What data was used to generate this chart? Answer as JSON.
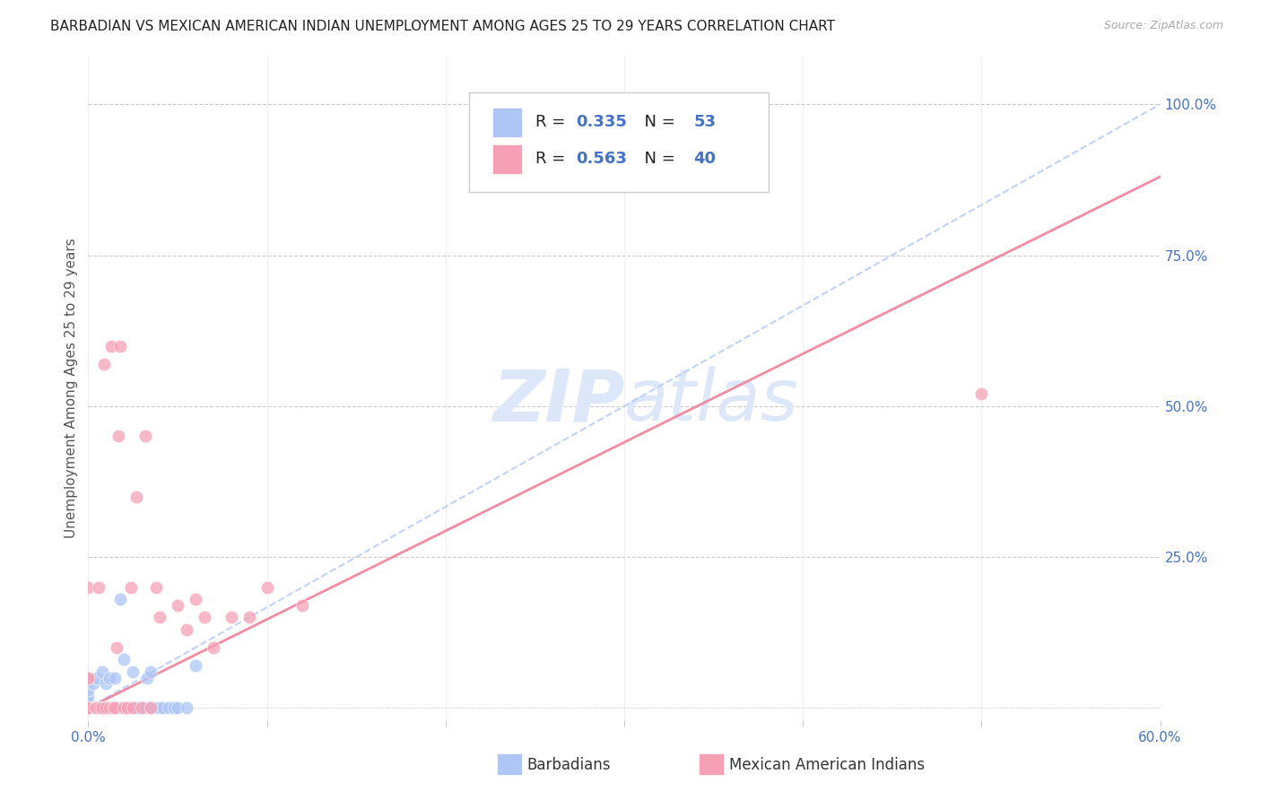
{
  "title": "BARBADIAN VS MEXICAN AMERICAN INDIAN UNEMPLOYMENT AMONG AGES 25 TO 29 YEARS CORRELATION CHART",
  "source": "Source: ZipAtlas.com",
  "ylabel": "Unemployment Among Ages 25 to 29 years",
  "xlim": [
    0.0,
    0.6
  ],
  "ylim": [
    -0.02,
    1.08
  ],
  "xticks": [
    0.0,
    0.1,
    0.2,
    0.3,
    0.4,
    0.5,
    0.6
  ],
  "xticklabels": [
    "0.0%",
    "",
    "",
    "",
    "",
    "",
    "60.0%"
  ],
  "yticks_right": [
    0.25,
    0.5,
    0.75,
    1.0
  ],
  "ytick_right_labels": [
    "25.0%",
    "50.0%",
    "75.0%",
    "100.0%"
  ],
  "barbadian_color": "#adc6f5",
  "mexican_color": "#f5a0b5",
  "barbadian_line_color": "#b8cef7",
  "mexican_line_color": "#f08098",
  "blue_text": "#4472c4",
  "black_text": "#333333",
  "watermark_color": "#dce8fa",
  "grid_color": "#cccccc",
  "background_color": "#ffffff",
  "barbadian_R": 0.335,
  "barbadian_N": 53,
  "mexican_R": 0.563,
  "mexican_N": 40,
  "barb_line_x0": 0.0,
  "barb_line_y0": 0.0,
  "barb_line_x1": 0.6,
  "barb_line_y1": 1.0,
  "mex_line_x0": 0.0,
  "mex_line_y0": 0.0,
  "mex_line_x1": 0.6,
  "mex_line_y1": 0.88,
  "barbadian_x": [
    0.0,
    0.0,
    0.0,
    0.0,
    0.0,
    0.0,
    0.0,
    0.0,
    0.0,
    0.0,
    0.003,
    0.003,
    0.005,
    0.005,
    0.005,
    0.006,
    0.007,
    0.008,
    0.008,
    0.009,
    0.01,
    0.01,
    0.01,
    0.012,
    0.012,
    0.013,
    0.014,
    0.015,
    0.015,
    0.016,
    0.017,
    0.018,
    0.02,
    0.02,
    0.02,
    0.022,
    0.025,
    0.025,
    0.027,
    0.028,
    0.03,
    0.032,
    0.033,
    0.035,
    0.035,
    0.038,
    0.04,
    0.042,
    0.045,
    0.048,
    0.05,
    0.055,
    0.06
  ],
  "barbadian_y": [
    0.0,
    0.0,
    0.0,
    0.0,
    0.0,
    0.0,
    0.01,
    0.01,
    0.02,
    0.03,
    0.0,
    0.04,
    0.0,
    0.0,
    0.05,
    0.0,
    0.0,
    0.0,
    0.06,
    0.0,
    0.0,
    0.0,
    0.04,
    0.0,
    0.05,
    0.0,
    0.0,
    0.0,
    0.05,
    0.0,
    0.0,
    0.18,
    0.0,
    0.0,
    0.08,
    0.0,
    0.0,
    0.06,
    0.0,
    0.0,
    0.0,
    0.0,
    0.05,
    0.0,
    0.06,
    0.0,
    0.0,
    0.0,
    0.0,
    0.0,
    0.0,
    0.0,
    0.07
  ],
  "mexican_x": [
    0.0,
    0.0,
    0.0,
    0.0,
    0.0,
    0.0,
    0.004,
    0.005,
    0.006,
    0.007,
    0.008,
    0.009,
    0.01,
    0.012,
    0.013,
    0.014,
    0.015,
    0.016,
    0.017,
    0.018,
    0.02,
    0.022,
    0.024,
    0.025,
    0.027,
    0.03,
    0.032,
    0.035,
    0.038,
    0.04,
    0.05,
    0.055,
    0.06,
    0.065,
    0.07,
    0.08,
    0.09,
    0.1,
    0.12,
    0.5
  ],
  "mexican_y": [
    0.0,
    0.0,
    0.0,
    0.05,
    0.05,
    0.2,
    0.0,
    0.0,
    0.2,
    0.0,
    0.0,
    0.57,
    0.0,
    0.0,
    0.6,
    0.0,
    0.0,
    0.1,
    0.45,
    0.6,
    0.0,
    0.0,
    0.2,
    0.0,
    0.35,
    0.0,
    0.45,
    0.0,
    0.2,
    0.15,
    0.17,
    0.13,
    0.18,
    0.15,
    0.1,
    0.15,
    0.15,
    0.2,
    0.17,
    0.52
  ]
}
